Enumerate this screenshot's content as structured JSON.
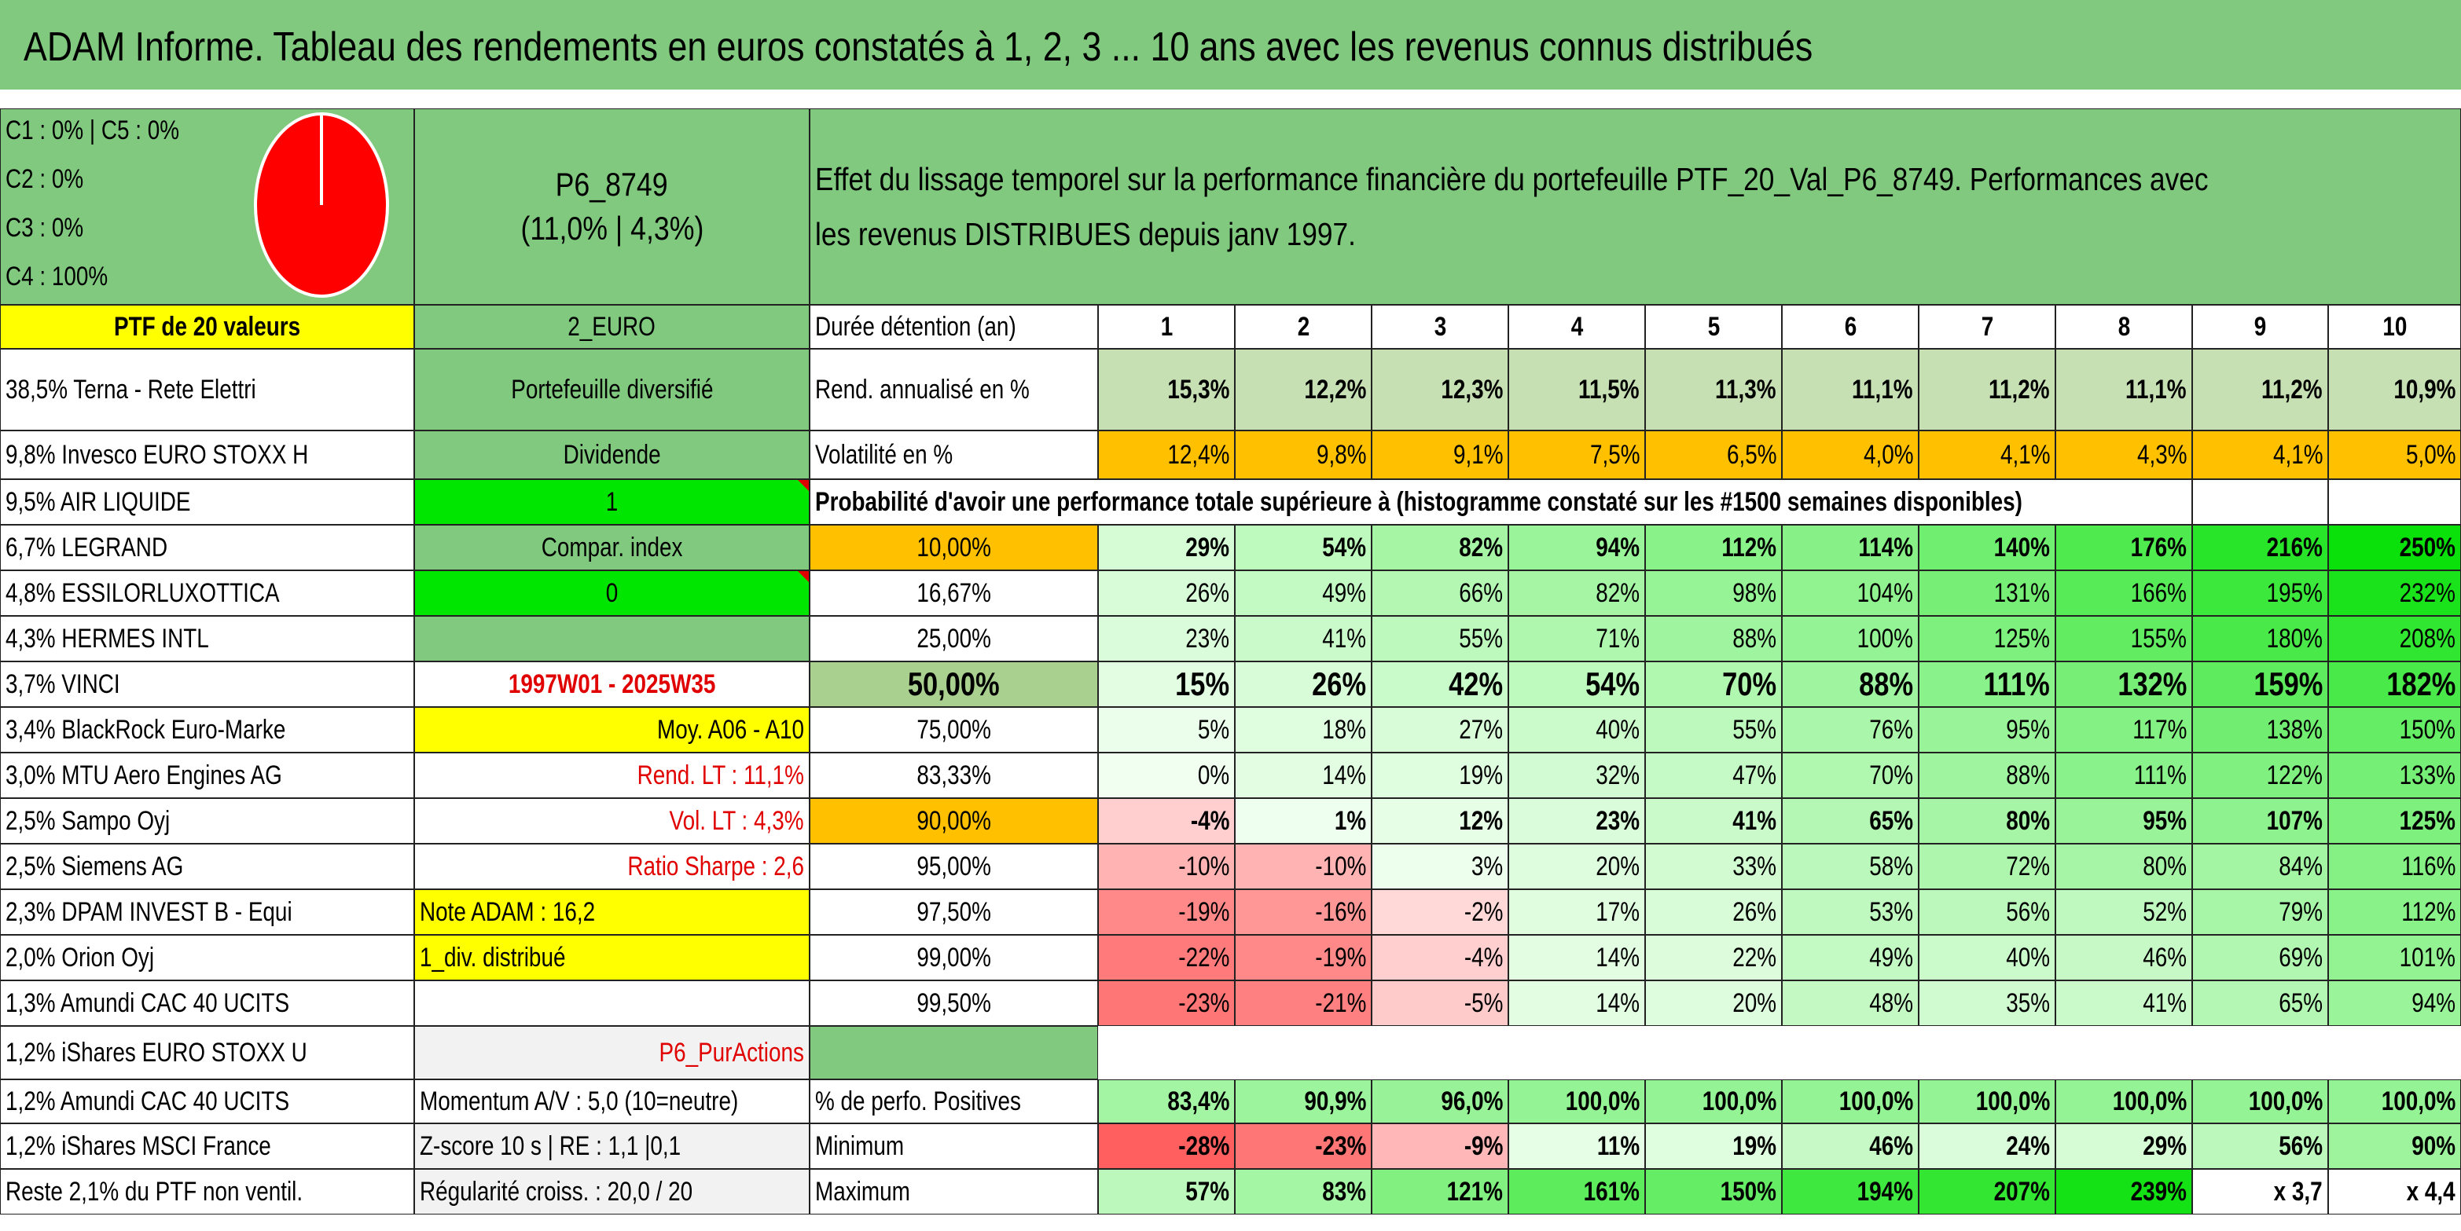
{
  "title": "ADAM Informe. Tableau des rendements en euros constatés à 1, 2, 3 ... 10 ans avec les revenus connus distribués",
  "allocation": {
    "c1_c5": "C1 : 0% | C5 : 0%",
    "c2": "C2 : 0%",
    "c3": "C3 : 0%",
    "c4": "C4 : 100%",
    "pie": [
      0,
      0,
      0,
      100,
      0
    ],
    "pie_color": "#ff0000"
  },
  "portfolio": {
    "code": "P6_8749",
    "perf": "(11,0% | 4,3%)",
    "description": "Effet du lissage temporel sur la performance financière du portefeuille PTF_20_Val_P6_8749. Performances avec les revenus DISTRIBUES depuis janv 1997.",
    "ptf_label": "PTF de 20 valeurs",
    "currency": "2_EURO",
    "type": "Portefeuille diversifié",
    "dividend_label": "Dividende",
    "dividend_value": "1",
    "compar_label": "Compar. index",
    "compar_value": "0",
    "period": "1997W01 - 2025W35",
    "moy": "Moy. A06 - A10",
    "rend_lt": "Rend. LT : 11,1%",
    "vol_lt": "Vol. LT : 4,3%",
    "sharpe": "Ratio Sharpe : 2,6",
    "note": "Note ADAM : 16,2",
    "div": "1_div. distribué",
    "pur": "P6_PurActions",
    "momentum": "Momentum A/V : 5,0 (10=neutre)",
    "zscore": "Z-score 10 s | RE : 1,1 |0,1",
    "regularite": "Régularité croiss. : 20,0 / 20"
  },
  "holdings": [
    "38,5% Terna - Rete Elettri",
    "9,8% Invesco EURO STOXX H",
    "9,5% AIR LIQUIDE",
    "6,7% LEGRAND",
    "4,8% ESSILORLUXOTTICA",
    "4,3% HERMES INTL",
    "3,7% VINCI",
    "3,4% BlackRock Euro-Marke",
    "3,0% MTU Aero Engines AG",
    "2,5% Sampo Oyj",
    "2,5% Siemens AG",
    "2,3% DPAM INVEST B - Equi",
    "2,0% Orion Oyj",
    "1,3% Amundi CAC 40 UCITS",
    "1,2% iShares EURO STOXX U",
    "1,2% Amundi CAC 40 UCITS",
    "1,2% iShares MSCI France",
    "Reste 2,1% du PTF non ventil."
  ],
  "table": {
    "duration_label": "Durée détention (an)",
    "years": [
      "1",
      "2",
      "3",
      "4",
      "5",
      "6",
      "7",
      "8",
      "9",
      "10"
    ],
    "rend_label": "Rend. annualisé en %",
    "rend": [
      "15,3%",
      "12,2%",
      "12,3%",
      "11,5%",
      "11,3%",
      "11,1%",
      "11,2%",
      "11,1%",
      "11,2%",
      "10,9%"
    ],
    "vol_label": "Volatilité en %",
    "vol": [
      "12,4%",
      "9,8%",
      "9,1%",
      "7,5%",
      "6,5%",
      "4,0%",
      "4,1%",
      "4,3%",
      "4,1%",
      "5,0%"
    ],
    "prob_header": "Probabilité d'avoir une performance totale supérieure à (histogramme constaté sur les #1500 semaines disponibles)",
    "prob_rows": [
      {
        "p": "10,00%",
        "v": [
          "29%",
          "54%",
          "82%",
          "94%",
          "112%",
          "114%",
          "140%",
          "176%",
          "216%",
          "250%"
        ]
      },
      {
        "p": "16,67%",
        "v": [
          "26%",
          "49%",
          "66%",
          "82%",
          "98%",
          "104%",
          "131%",
          "166%",
          "195%",
          "232%"
        ]
      },
      {
        "p": "25,00%",
        "v": [
          "23%",
          "41%",
          "55%",
          "71%",
          "88%",
          "100%",
          "125%",
          "155%",
          "180%",
          "208%"
        ]
      },
      {
        "p": "50,00%",
        "v": [
          "15%",
          "26%",
          "42%",
          "54%",
          "70%",
          "88%",
          "111%",
          "132%",
          "159%",
          "182%"
        ]
      },
      {
        "p": "75,00%",
        "v": [
          "5%",
          "18%",
          "27%",
          "40%",
          "55%",
          "76%",
          "95%",
          "117%",
          "138%",
          "150%"
        ]
      },
      {
        "p": "83,33%",
        "v": [
          "0%",
          "14%",
          "19%",
          "32%",
          "47%",
          "70%",
          "88%",
          "111%",
          "122%",
          "133%"
        ]
      },
      {
        "p": "90,00%",
        "v": [
          "-4%",
          "1%",
          "12%",
          "23%",
          "41%",
          "65%",
          "80%",
          "95%",
          "107%",
          "125%"
        ]
      },
      {
        "p": "95,00%",
        "v": [
          "-10%",
          "-10%",
          "3%",
          "20%",
          "33%",
          "58%",
          "72%",
          "80%",
          "84%",
          "116%"
        ]
      },
      {
        "p": "97,50%",
        "v": [
          "-19%",
          "-16%",
          "-2%",
          "17%",
          "26%",
          "53%",
          "56%",
          "52%",
          "79%",
          "112%"
        ]
      },
      {
        "p": "99,00%",
        "v": [
          "-22%",
          "-19%",
          "-4%",
          "14%",
          "22%",
          "49%",
          "40%",
          "46%",
          "69%",
          "101%"
        ]
      },
      {
        "p": "99,50%",
        "v": [
          "-23%",
          "-21%",
          "-5%",
          "14%",
          "20%",
          "48%",
          "35%",
          "41%",
          "65%",
          "94%"
        ]
      }
    ],
    "pos_label": "% de perfo. Positives",
    "pos": [
      "83,4%",
      "90,9%",
      "96,0%",
      "100,0%",
      "100,0%",
      "100,0%",
      "100,0%",
      "100,0%",
      "100,0%",
      "100,0%"
    ],
    "min_label": "Minimum",
    "min": [
      "-28%",
      "-23%",
      "-9%",
      "11%",
      "19%",
      "46%",
      "24%",
      "29%",
      "56%",
      "90%"
    ],
    "max_label": "Maximum",
    "max": [
      "57%",
      "83%",
      "121%",
      "161%",
      "150%",
      "194%",
      "207%",
      "239%",
      "x 3,7",
      "x 4,4"
    ]
  },
  "colors": {
    "green_header": "#80c97f",
    "yellow": "#ffff00",
    "bright_green": "#00e600",
    "orange": "#ffc000",
    "rend_bg": "#c6e0b4",
    "red_text": "#e00000"
  }
}
